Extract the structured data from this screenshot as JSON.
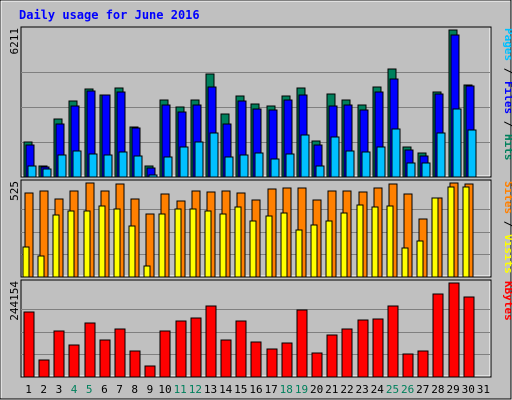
{
  "chart_data": {
    "type": "bar",
    "title": "Daily usage for June 2016",
    "categories": [
      "1",
      "2",
      "3",
      "4",
      "5",
      "6",
      "7",
      "8",
      "9",
      "10",
      "11",
      "12",
      "13",
      "14",
      "15",
      "16",
      "17",
      "18",
      "19",
      "20",
      "21",
      "22",
      "23",
      "24",
      "25",
      "26",
      "27",
      "28",
      "29",
      "30",
      "31"
    ],
    "weekend_days": [
      "4",
      "5",
      "11",
      "12",
      "18",
      "19",
      "25",
      "26"
    ],
    "colors": {
      "background": "#c0c0c0",
      "title": "#0000ff",
      "hits": "#00805c",
      "files": "#0000ff",
      "pages": "#00c0ff",
      "visits": "#ffff00",
      "sites": "#ff8000",
      "kbytes": "#ff0000",
      "weekend_label": "#00805c",
      "weekday_label": "#000000"
    },
    "panels": [
      {
        "id": "hits-files-pages",
        "max_label": "6211",
        "ymax": 6211,
        "legend": [
          {
            "text": "Hits",
            "color": "#00805c"
          },
          {
            "text": "Files",
            "color": "#0000ff"
          },
          {
            "text": "Pages",
            "color": "#00c0ff"
          }
        ],
        "series": [
          {
            "name": "Hits",
            "color": "#00805c",
            "values": [
              1480,
              480,
              2430,
              3200,
              3700,
              3480,
              3760,
              2120,
              480,
              3250,
              2970,
              3250,
              4350,
              2650,
              3440,
              3100,
              2980,
              3440,
              3770,
              1510,
              3520,
              3240,
              3060,
              3800,
              4570,
              1250,
              1000,
              3610,
              6211,
              3890,
              0
            ]
          },
          {
            "name": "Files",
            "color": "#0000ff",
            "values": [
              1340,
              420,
              2250,
              3020,
              3630,
              3450,
              3610,
              2050,
              400,
              3030,
              2760,
              3040,
              3800,
              2230,
              3230,
              2890,
              2840,
              3250,
              3480,
              1370,
              3020,
              3050,
              2840,
              3580,
              4120,
              1150,
              900,
              3490,
              5980,
              3830,
              0
            ]
          },
          {
            "name": "Pages",
            "color": "#00c0ff",
            "values": [
              470,
              320,
              940,
              1090,
              970,
              930,
              1040,
              900,
              100,
              850,
              1260,
              1480,
              1850,
              840,
              930,
              1000,
              740,
              960,
              1780,
              460,
              1680,
              1100,
              1060,
              1260,
              2010,
              580,
              580,
              1840,
              2870,
              1980,
              0
            ]
          }
        ]
      },
      {
        "id": "visits-sites",
        "max_label": "525",
        "ymax": 525,
        "legend": [
          {
            "text": "Visits",
            "color": "#ffff00"
          },
          {
            "text": "Sites",
            "color": "#ff8000"
          }
        ],
        "series": [
          {
            "name": "Sites",
            "color": "#ff8000",
            "values": [
              470,
              480,
              435,
              478,
              525,
              478,
              521,
              433,
              352,
              465,
              424,
              481,
              473,
              478,
              470,
              432,
              491,
              495,
              495,
              432,
              482,
              479,
              473,
              496,
              520,
              462,
              323,
              440,
              525,
              520,
              0
            ]
          },
          {
            "name": "Visits",
            "color": "#ffff00",
            "values": [
              170,
              120,
              345,
              370,
              370,
              395,
              380,
              285,
              60,
              350,
              380,
              380,
              370,
              350,
              390,
              310,
              340,
              355,
              260,
              290,
              310,
              355,
              400,
              390,
              395,
              160,
              200,
              440,
              500,
              500,
              0
            ]
          }
        ]
      },
      {
        "id": "kbytes",
        "max_label": "244154",
        "ymax": 244154,
        "legend": [
          {
            "text": "KBytes",
            "color": "#ff0000"
          }
        ],
        "series": [
          {
            "name": "KBytes",
            "color": "#ff0000",
            "values": [
              170000,
              45000,
              120000,
              83000,
              141000,
              96000,
              125000,
              68000,
              28000,
              120000,
              145000,
              153000,
              184000,
              96000,
              146000,
              90000,
              73000,
              89000,
              174000,
              63000,
              110000,
              125000,
              147000,
              150000,
              184000,
              61000,
              68000,
              215000,
              244154,
              208000,
              0
            ]
          }
        ]
      }
    ]
  }
}
